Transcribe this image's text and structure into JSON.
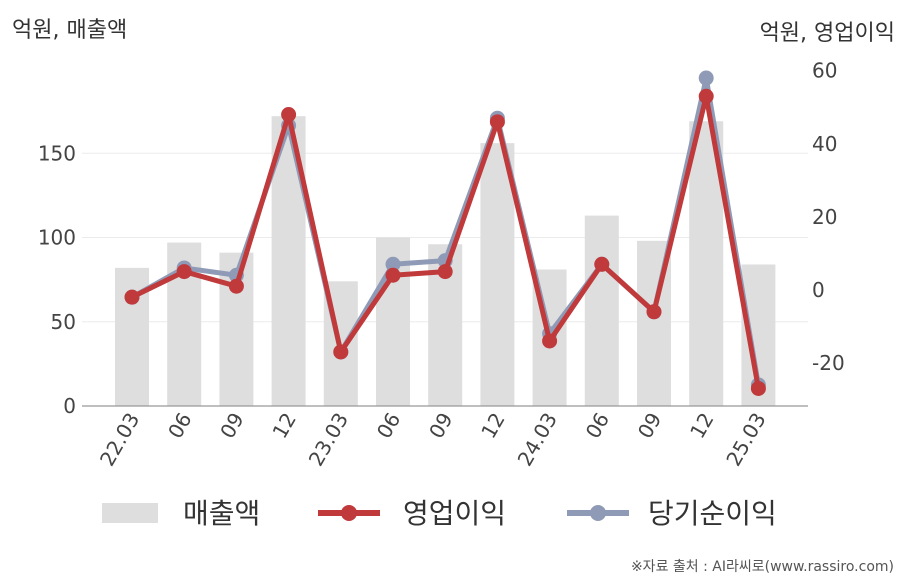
{
  "chart_data": {
    "type": "bar+line",
    "left_unit": "억원, 매출액",
    "right_unit": "억원, 영업이익",
    "categories": [
      "22.03",
      "06",
      "09",
      "12",
      "23.03",
      "06",
      "09",
      "12",
      "24.03",
      "06",
      "09",
      "12",
      "25.03"
    ],
    "left_axis": {
      "ylim": [
        0,
        200
      ],
      "ticks": [
        "0",
        "50",
        "100",
        "150"
      ],
      "tick_values": [
        0,
        50,
        100,
        150
      ]
    },
    "right_axis": {
      "ylim": [
        -31.8,
        70.6
      ],
      "ticks": [
        "-20",
        "0",
        "20",
        "40",
        "60"
      ],
      "tick_values": [
        -20,
        0,
        20,
        40,
        60
      ]
    },
    "series": [
      {
        "name": "매출액",
        "type": "bar",
        "axis": "left",
        "color": "#dedede",
        "values": [
          82,
          97,
          91,
          172,
          74,
          100,
          96,
          156,
          81,
          113,
          98,
          169,
          84
        ]
      },
      {
        "name": "당기순이익",
        "type": "line",
        "axis": "right",
        "color": "#8f9bb6",
        "values": [
          -2,
          6,
          4,
          45,
          -17,
          7,
          8,
          47,
          -12,
          7,
          -6,
          58,
          -26
        ]
      },
      {
        "name": "영업이익",
        "type": "line",
        "axis": "right",
        "color": "#c0393b",
        "values": [
          -2,
          5,
          1,
          48,
          -17,
          4,
          5,
          46,
          -14,
          7,
          -6,
          53,
          -27
        ]
      }
    ],
    "grid": true,
    "legend_position": "bottom"
  },
  "legend": {
    "items": [
      {
        "label": "매출액",
        "kind": "bar",
        "color": "#dedede"
      },
      {
        "label": "영업이익",
        "kind": "line",
        "color": "#c0393b"
      },
      {
        "label": "당기순이익",
        "kind": "line",
        "color": "#8f9bb6"
      }
    ]
  },
  "source": "※자료 출처 : AI라씨로(www.rassiro.com)"
}
